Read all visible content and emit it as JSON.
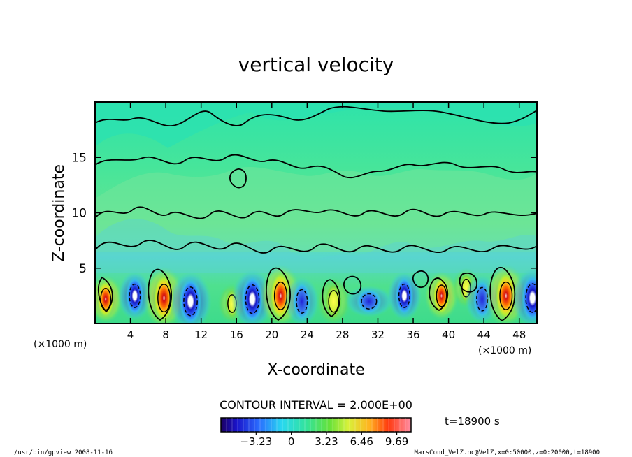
{
  "chart_data": {
    "type": "heatmap",
    "title": "vertical velocity",
    "xlabel": "X-coordinate",
    "ylabel": "Z-coordinate",
    "x_unit": "(×1000 m)",
    "y_unit": "(×1000 m)",
    "xlim": [
      0,
      50
    ],
    "ylim": [
      0,
      20
    ],
    "x_ticks": [
      4,
      8,
      12,
      16,
      20,
      24,
      28,
      32,
      36,
      40,
      44,
      48
    ],
    "y_ticks": [
      5,
      10,
      15
    ],
    "x_tick_labels": [
      "4",
      "8",
      "12",
      "16",
      "20",
      "24",
      "28",
      "32",
      "36",
      "40",
      "44",
      "48"
    ],
    "y_tick_labels": [
      "5",
      "10",
      "15"
    ],
    "contour_interval_text": "CONTOUR INTERVAL = 2.000E+00",
    "contour_interval": 2.0,
    "colorbar": {
      "range": [
        -6.46,
        11.0
      ],
      "tick_values": [
        -3.23,
        0,
        3.23,
        6.46,
        9.69
      ],
      "tick_labels": [
        "−3.23",
        "0",
        "3.23",
        "6.46",
        "9.69"
      ]
    },
    "time_label": "t=18900 s",
    "cells": [
      {
        "x": 1.2,
        "z": 2.2,
        "w": 8.0,
        "label": "updraft"
      },
      {
        "x": 4.5,
        "z": 2.5,
        "w": -5.5,
        "label": "downdraft"
      },
      {
        "x": 7.8,
        "z": 2.3,
        "w": 10.5,
        "label": "updraft"
      },
      {
        "x": 10.8,
        "z": 2.0,
        "w": -7.0,
        "label": "downdraft"
      },
      {
        "x": 15.5,
        "z": 1.8,
        "w": 4.0,
        "label": "updraft"
      },
      {
        "x": 17.8,
        "z": 2.2,
        "w": -6.5,
        "label": "downdraft"
      },
      {
        "x": 21.0,
        "z": 2.5,
        "w": 10.0,
        "label": "updraft"
      },
      {
        "x": 23.4,
        "z": 2.0,
        "w": -5.0,
        "label": "downdraft"
      },
      {
        "x": 27.0,
        "z": 2.0,
        "w": 7.0,
        "label": "updraft"
      },
      {
        "x": 31.0,
        "z": 2.0,
        "w": -3.0,
        "label": "downdraft"
      },
      {
        "x": 35.0,
        "z": 2.5,
        "w": -6.0,
        "label": "downdraft"
      },
      {
        "x": 39.2,
        "z": 2.5,
        "w": 7.5,
        "label": "updraft"
      },
      {
        "x": 42.0,
        "z": 3.2,
        "w": 5.0,
        "label": "updraft"
      },
      {
        "x": 43.8,
        "z": 2.2,
        "w": -5.0,
        "label": "downdraft"
      },
      {
        "x": 46.5,
        "z": 2.5,
        "w": 10.5,
        "label": "updraft"
      },
      {
        "x": 49.5,
        "z": 2.3,
        "w": -7.0,
        "label": "downdraft"
      }
    ]
  },
  "footer": {
    "left": "/usr/bin/gpview   2008-11-16",
    "right": "MarsCond_VelZ.nc@VelZ,x=0:50000,z=0:20000,t=18900"
  },
  "colors": {
    "background_field": "#3de8a0",
    "upper_field": "#30e6a8",
    "mid_field": "#6ce69a",
    "downdraft_core": "#ffffff",
    "downdraft": "#1a1ad0",
    "updraft_core": "#e01010",
    "updraft": "#ffff40"
  }
}
